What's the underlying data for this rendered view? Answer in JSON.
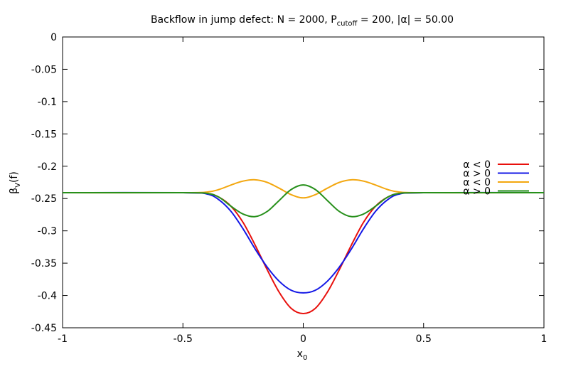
{
  "chart_data": {
    "type": "line",
    "title": {
      "prefix": "Backflow in jump defect: N = 2000, P",
      "sub": "cutoff",
      "suffix": " = 200, |α| = 50.00"
    },
    "xlabel": {
      "main": "x",
      "sub": "0"
    },
    "ylabel": {
      "main": "β",
      "sub": "V",
      "suffix": "(f)"
    },
    "xlim": [
      -1,
      1
    ],
    "ylim": [
      -0.45,
      0
    ],
    "xticks": [
      {
        "v": -1,
        "label": "-1"
      },
      {
        "v": -0.5,
        "label": "-0.5"
      },
      {
        "v": 0,
        "label": "0"
      },
      {
        "v": 0.5,
        "label": "0.5"
      },
      {
        "v": 1,
        "label": "1"
      }
    ],
    "yticks": [
      {
        "v": 0,
        "label": "0"
      },
      {
        "v": -0.05,
        "label": "-0.05"
      },
      {
        "v": -0.1,
        "label": "-0.1"
      },
      {
        "v": -0.15,
        "label": "-0.15"
      },
      {
        "v": -0.2,
        "label": "-0.2"
      },
      {
        "v": -0.25,
        "label": "-0.25"
      },
      {
        "v": -0.3,
        "label": "-0.3"
      },
      {
        "v": -0.35,
        "label": "-0.35"
      },
      {
        "v": -0.4,
        "label": "-0.4"
      },
      {
        "v": -0.45,
        "label": "-0.45"
      }
    ],
    "grid": false,
    "legend_position": "right",
    "series": [
      {
        "name": "α < 0",
        "color": "#e8100c",
        "x": [
          -1,
          -0.5,
          -0.4,
          -0.35,
          -0.3,
          -0.25,
          -0.2,
          -0.15,
          -0.1,
          -0.05,
          0,
          0.05,
          0.1,
          0.15,
          0.2,
          0.25,
          0.3,
          0.35,
          0.4,
          0.5,
          1
        ],
        "y": [
          -0.241,
          -0.241,
          -0.242,
          -0.248,
          -0.262,
          -0.287,
          -0.322,
          -0.36,
          -0.395,
          -0.42,
          -0.428,
          -0.42,
          -0.395,
          -0.36,
          -0.322,
          -0.287,
          -0.262,
          -0.248,
          -0.242,
          -0.241,
          -0.241
        ]
      },
      {
        "name": "α > 0",
        "color": "#1418e6",
        "x": [
          -1,
          -0.5,
          -0.4,
          -0.35,
          -0.3,
          -0.25,
          -0.2,
          -0.15,
          -0.1,
          -0.05,
          0,
          0.05,
          0.1,
          0.15,
          0.2,
          0.25,
          0.3,
          0.35,
          0.4,
          0.5,
          1
        ],
        "y": [
          -0.241,
          -0.241,
          -0.243,
          -0.252,
          -0.27,
          -0.297,
          -0.328,
          -0.356,
          -0.378,
          -0.392,
          -0.396,
          -0.392,
          -0.378,
          -0.356,
          -0.328,
          -0.297,
          -0.27,
          -0.252,
          -0.243,
          -0.241,
          -0.241
        ]
      },
      {
        "name": "α < 0",
        "color": "#f3a70f",
        "x": [
          -1,
          -0.5,
          -0.4,
          -0.35,
          -0.3,
          -0.25,
          -0.2,
          -0.15,
          -0.1,
          -0.05,
          0,
          0.05,
          0.1,
          0.15,
          0.2,
          0.25,
          0.3,
          0.35,
          0.4,
          0.5,
          1
        ],
        "y": [
          -0.241,
          -0.241,
          -0.24,
          -0.236,
          -0.229,
          -0.223,
          -0.221,
          -0.225,
          -0.234,
          -0.244,
          -0.249,
          -0.244,
          -0.234,
          -0.225,
          -0.221,
          -0.223,
          -0.229,
          -0.236,
          -0.24,
          -0.241,
          -0.241
        ]
      },
      {
        "name": "α > 0",
        "color": "#27901b",
        "x": [
          -1,
          -0.5,
          -0.4,
          -0.35,
          -0.3,
          -0.25,
          -0.2,
          -0.15,
          -0.1,
          -0.05,
          0,
          0.05,
          0.1,
          0.15,
          0.2,
          0.25,
          0.3,
          0.35,
          0.4,
          0.5,
          1
        ],
        "y": [
          -0.241,
          -0.241,
          -0.242,
          -0.248,
          -0.262,
          -0.274,
          -0.278,
          -0.27,
          -0.253,
          -0.236,
          -0.229,
          -0.236,
          -0.253,
          -0.27,
          -0.278,
          -0.274,
          -0.262,
          -0.248,
          -0.242,
          -0.241,
          -0.241
        ]
      }
    ]
  }
}
